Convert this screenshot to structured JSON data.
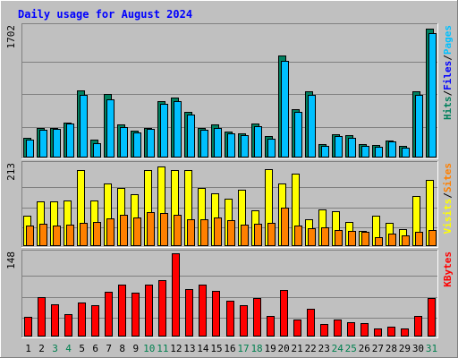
{
  "chart_data": {
    "type": "bar",
    "title": "Daily usage for August 2024",
    "title_color": "#0000ff",
    "days": [
      "1",
      "2",
      "3",
      "4",
      "5",
      "6",
      "7",
      "8",
      "9",
      "10",
      "11",
      "12",
      "13",
      "14",
      "15",
      "16",
      "17",
      "18",
      "19",
      "20",
      "21",
      "22",
      "23",
      "24",
      "25",
      "26",
      "27",
      "28",
      "29",
      "30",
      "31"
    ],
    "weekend_days": [
      "3",
      "4",
      "10",
      "11",
      "17",
      "18",
      "24",
      "25",
      "31"
    ],
    "weekend_color": "#00804f",
    "weekday_color": "#000000",
    "panels": [
      {
        "id": "hits-files-pages",
        "max_label": "1702",
        "ymax": 1702,
        "legend": [
          {
            "text": "Hits",
            "color": "#00805c"
          },
          {
            "text": "/",
            "color": "#000000"
          },
          {
            "text": "Files",
            "color": "#0000ff"
          },
          {
            "text": "/",
            "color": "#000000"
          },
          {
            "text": "Pages",
            "color": "#00c0ff"
          }
        ],
        "series": [
          {
            "name": "Hits",
            "color": "#008060",
            "values": [
              260,
              380,
              390,
              450,
              870,
              230,
              830,
              430,
              350,
              390,
              740,
              780,
              590,
              390,
              430,
              340,
              310,
              440,
              280,
              1330,
              630,
              860,
              170,
              300,
              290,
              170,
              160,
              220,
              150,
              860,
              1680
            ]
          },
          {
            "name": "Files",
            "color": "#00c0ff",
            "values": [
              230,
              360,
              370,
              440,
              820,
              190,
              760,
              400,
              330,
              370,
              700,
              740,
              560,
              360,
              390,
              320,
              290,
              410,
              250,
              1260,
              600,
              820,
              150,
              280,
              260,
              150,
              140,
              210,
              130,
              820,
              1620
            ]
          }
        ]
      },
      {
        "id": "visits-sites",
        "max_label": "213",
        "ymax": 213,
        "legend": [
          {
            "text": "Visits",
            "color": "#ffff00"
          },
          {
            "text": "/",
            "color": "#000000"
          },
          {
            "text": "Sites",
            "color": "#ff8000"
          }
        ],
        "series": [
          {
            "name": "Visits",
            "color": "#ffff00",
            "values": [
              80,
              116,
              116,
              120,
              199,
              119,
              164,
              152,
              135,
              199,
              208,
              199,
              199,
              153,
              138,
              123,
              147,
              94,
              202,
              164,
              189,
              70,
              95,
              91,
              64,
              40,
              80,
              60,
              45,
              131,
              174
            ]
          },
          {
            "name": "Sites",
            "color": "#ff8000",
            "values": [
              55,
              59,
              53,
              57,
              60,
              64,
              73,
              82,
              76,
              90,
              86,
              83,
              71,
              70,
              74,
              69,
              57,
              59,
              62,
              100,
              53,
              46,
              49,
              43,
              39,
              38,
              23,
              33,
              29,
              37,
              42
            ]
          }
        ]
      },
      {
        "id": "kbytes",
        "max_label": "148",
        "ymax": 148,
        "legend": [
          {
            "text": "KBytes",
            "color": "#ff0000"
          }
        ],
        "series": [
          {
            "name": "KBytes",
            "color": "#ff0000",
            "values": [
              35,
              70,
              57,
              40,
              61,
              55,
              80,
              93,
              78,
              93,
              100,
              148,
              84,
              93,
              81,
              64,
              56,
              69,
              37,
              83,
              30,
              49,
              23,
              31,
              25,
              24,
              15,
              18,
              15,
              36,
              69
            ]
          }
        ]
      }
    ]
  }
}
